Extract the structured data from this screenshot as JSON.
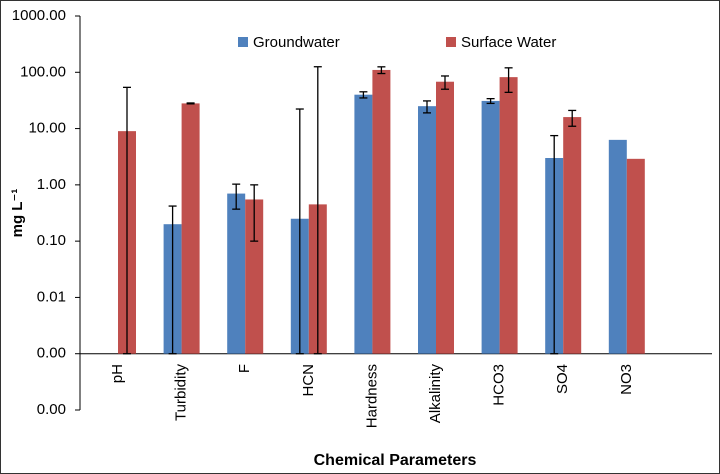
{
  "chart_data": {
    "type": "bar",
    "xlabel": "Chemical Parameters",
    "ylabel": "mg L⁻¹",
    "categories": [
      "pH",
      "Turbidity",
      "F",
      "HCN",
      "Hardness",
      "Alkalinity",
      "HCO3",
      "SO4",
      "NO3"
    ],
    "series": [
      {
        "name": "Groundwater",
        "color": "#4f81bd",
        "values": [
          null,
          0.2,
          0.7,
          0.25,
          40,
          25,
          31,
          3,
          6.3
        ],
        "errors": [
          null,
          0.22,
          0.33,
          22,
          5,
          6,
          3,
          4.5,
          null
        ]
      },
      {
        "name": "Surface Water",
        "color": "#c0504d",
        "values": [
          9,
          28,
          0.55,
          0.45,
          110,
          68,
          82,
          16,
          2.9
        ],
        "errors": [
          45,
          0.5,
          0.45,
          125,
          15,
          18,
          38,
          5,
          null
        ]
      }
    ],
    "log_scale": true,
    "ylim": [
      0.0001,
      1000
    ],
    "x_axis_crossing": 0.001,
    "yticks": [
      {
        "value": 1000,
        "label": "1000.00"
      },
      {
        "value": 100,
        "label": "100.00"
      },
      {
        "value": 10,
        "label": "10.00"
      },
      {
        "value": 1,
        "label": "1.00"
      },
      {
        "value": 0.1,
        "label": "0.10"
      },
      {
        "value": 0.01,
        "label": "0.01"
      },
      {
        "value": 0.001,
        "label": "0.00"
      },
      {
        "value": 0.0001,
        "label": "0.00"
      }
    ],
    "legend": "top"
  }
}
